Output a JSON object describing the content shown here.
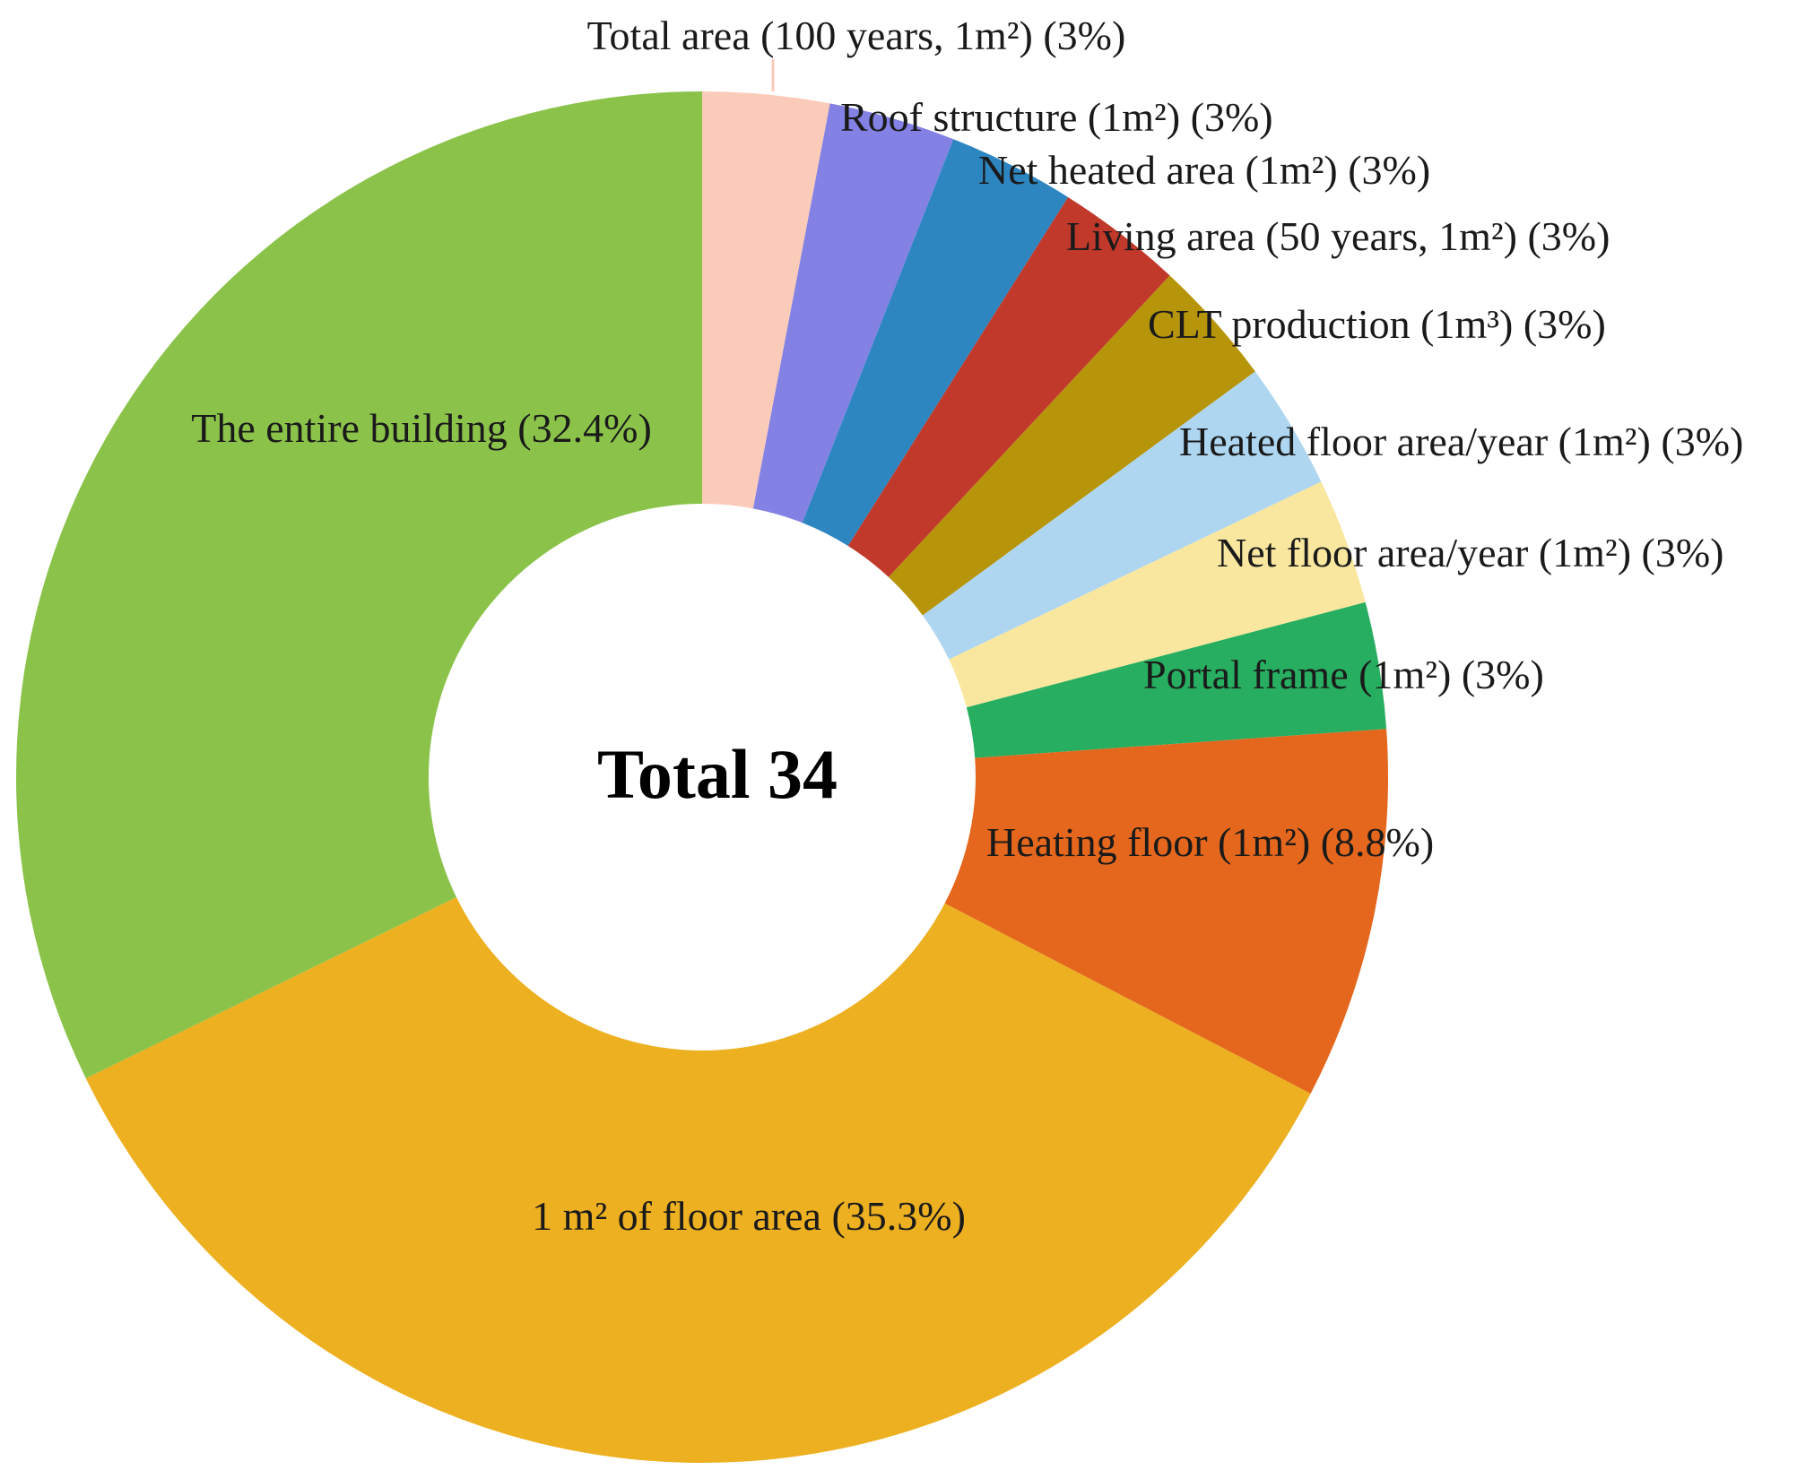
{
  "chart_data": {
    "type": "pie",
    "style": "donut",
    "center_label": "Total 34",
    "slices": [
      {
        "label": "Total area (100 years, 1m²) (3%)",
        "value": 3,
        "color": "#FBCBB9"
      },
      {
        "label": "Roof structure (1m²) (3%)",
        "value": 3,
        "color": "#8381E4"
      },
      {
        "label": "Net heated area (1m²) (3%)",
        "value": 3,
        "color": "#2E86C1"
      },
      {
        "label": "Living area (50 years, 1m²) (3%)",
        "value": 3,
        "color": "#C0392B"
      },
      {
        "label": "CLT production (1m³) (3%)",
        "value": 3,
        "color": "#B7950B"
      },
      {
        "label": "Heated floor area/year (1m²) (3%)",
        "value": 3,
        "color": "#AED6F1"
      },
      {
        "label": "Net floor area/year (1m²) (3%)",
        "value": 3,
        "color": "#F9E79F"
      },
      {
        "label": "Portal frame (1m²) (3%)",
        "value": 3,
        "color": "#27AE60"
      },
      {
        "label": "Heating floor (1m²) (8.8%)",
        "value": 8.8,
        "color": "#E4671D"
      },
      {
        "label": "1 m² of floor area (35.3%)",
        "value": 35.3,
        "color": "#ECB021"
      },
      {
        "label": "The entire building (32.4%)",
        "value": 32.4,
        "color": "#8BC34A"
      }
    ]
  }
}
